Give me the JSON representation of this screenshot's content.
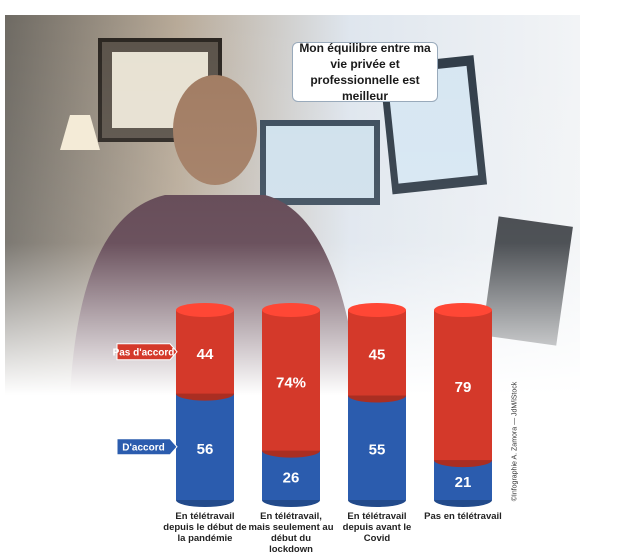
{
  "chart_data": {
    "type": "bar",
    "stacked": true,
    "title": "Mon équilibre entre ma vie privée et professionnelle est meilleur",
    "credit": "©Infographie A. Zamora — JdM/iStock",
    "categories": [
      "En télétravail depuis le début de la pandémie",
      "En télétravail, mais seulement au début du lockdown",
      "En télétravail depuis avant le Covid",
      "Pas en télétravail"
    ],
    "series": [
      {
        "name": "D'accord",
        "color": "#2b5cae",
        "values": [
          56,
          26,
          55,
          21
        ]
      },
      {
        "name": "Pas d'accord",
        "color": "#d4392a",
        "values": [
          44,
          74,
          45,
          79
        ],
        "value_labels": [
          "44",
          "74%",
          "45",
          "79"
        ]
      }
    ]
  }
}
